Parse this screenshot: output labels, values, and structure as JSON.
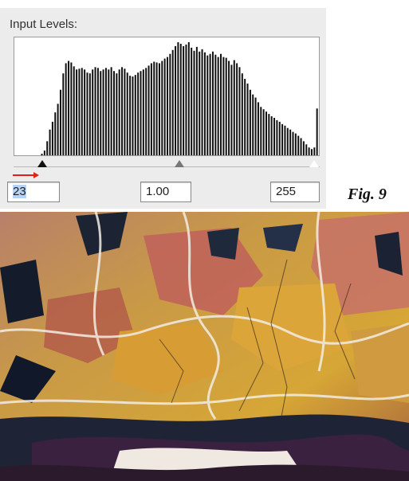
{
  "panel": {
    "title": "Input Levels:",
    "histogram_levels": [
      0,
      0,
      0,
      0,
      0,
      0,
      0,
      0,
      0,
      0,
      2,
      6,
      18,
      33,
      43,
      55,
      66,
      84,
      105,
      118,
      121,
      119,
      114,
      110,
      111,
      112,
      110,
      106,
      105,
      110,
      113,
      112,
      108,
      110,
      112,
      110,
      113,
      108,
      105,
      110,
      113,
      111,
      106,
      102,
      101,
      103,
      106,
      108,
      110,
      112,
      115,
      118,
      120,
      119,
      118,
      121,
      124,
      126,
      130,
      135,
      140,
      145,
      143,
      140,
      142,
      145,
      138,
      134,
      139,
      133,
      136,
      132,
      128,
      130,
      133,
      129,
      126,
      130,
      126,
      125,
      121,
      116,
      122,
      118,
      113,
      105,
      98,
      92,
      84,
      78,
      74,
      68,
      62,
      59,
      56,
      53,
      50,
      48,
      45,
      43,
      40,
      38,
      35,
      33,
      30,
      28,
      25,
      22,
      18,
      14,
      10,
      8,
      10,
      60
    ],
    "black_point": "23",
    "gamma": "1.00",
    "white_point": "255",
    "black_point_level": 23,
    "gamma_level": 1.0,
    "white_point_level": 255
  },
  "figure_label": "Fig. 9",
  "colors": {
    "panel_bg": "#ececec",
    "histogram_bar": "#111111",
    "arrow": "#e0201a",
    "selection": "#b7d4f5"
  },
  "icons": {
    "arrow": "right-arrow-icon",
    "black_handle": "triangle-up-icon",
    "gamma_handle": "triangle-up-icon",
    "white_handle": "triangle-up-icon"
  }
}
